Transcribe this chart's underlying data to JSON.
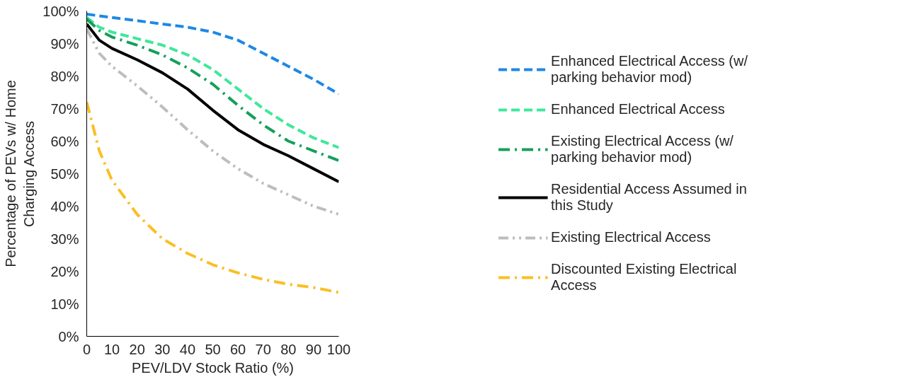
{
  "chart_data": {
    "type": "line",
    "xlabel": "PEV/LDV Stock Ratio (%)",
    "ylabel": "Percentage of PEVs w/ Home Charging Access",
    "x": [
      0,
      5,
      10,
      20,
      30,
      40,
      50,
      60,
      70,
      80,
      90,
      100
    ],
    "xlim": [
      0,
      100
    ],
    "xticks": [
      0,
      10,
      20,
      30,
      40,
      50,
      60,
      70,
      80,
      90,
      100
    ],
    "ylim": [
      0,
      100
    ],
    "yticks": [
      {
        "value": 0,
        "label": "0%"
      },
      {
        "value": 10,
        "label": "10%"
      },
      {
        "value": 20,
        "label": "20%"
      },
      {
        "value": 30,
        "label": "30%"
      },
      {
        "value": 40,
        "label": "40%"
      },
      {
        "value": 50,
        "label": "50%"
      },
      {
        "value": 60,
        "label": "60%"
      },
      {
        "value": 70,
        "label": "70%"
      },
      {
        "value": 80,
        "label": "80%"
      },
      {
        "value": 90,
        "label": "90%"
      },
      {
        "value": 100,
        "label": "100%"
      }
    ],
    "grid": false,
    "legend": "right",
    "marker": "none",
    "series": [
      {
        "name": "Enhanced Electrical Access (w/ parking behavior mod)",
        "color": "#1e88e5",
        "line_style": "dashed",
        "values": [
          99,
          98.5,
          98,
          97,
          96,
          95,
          93.5,
          91,
          87,
          83,
          79,
          74.5
        ]
      },
      {
        "name": "Enhanced Electrical Access",
        "color": "#3ee89a",
        "line_style": "dashed",
        "values": [
          98,
          95,
          93.5,
          91.5,
          89.5,
          86.5,
          82,
          76,
          70,
          65,
          61,
          58
        ]
      },
      {
        "name": "Existing Electrical Access (w/ parking behavior mod)",
        "color": "#14a05a",
        "line_style": "dashdot",
        "values": [
          97.5,
          94,
          92,
          89.5,
          86.5,
          82.5,
          77.5,
          71,
          65,
          60,
          57,
          54
        ]
      },
      {
        "name": "Residential Access Assumed in this Study",
        "color": "#000000",
        "line_style": "solid",
        "values": [
          96,
          91,
          88.5,
          85,
          81,
          76,
          69.5,
          63.5,
          59,
          55.5,
          51.5,
          47.5
        ]
      },
      {
        "name": "Existing Electrical Access",
        "color": "#bdbdbd",
        "line_style": "dashdotdot",
        "values": [
          94.5,
          87,
          83,
          77,
          70.5,
          63.5,
          57,
          51.5,
          47,
          43.5,
          40,
          37.5
        ]
      },
      {
        "name": "Discounted Existing Electrical Access",
        "color": "#fbbf24",
        "line_style": "dashdot",
        "values": [
          72,
          57,
          48,
          37.5,
          30,
          25.5,
          22,
          19.5,
          17.5,
          16,
          15,
          13.5
        ]
      }
    ]
  }
}
